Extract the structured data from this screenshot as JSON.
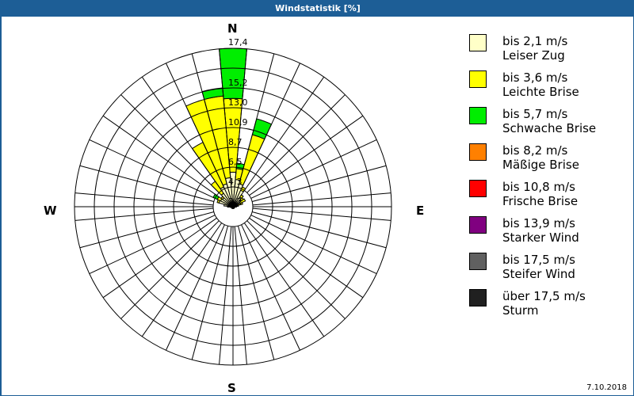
{
  "window": {
    "title": "Windstatistik [%]",
    "date": "7.10.2018"
  },
  "compass": {
    "n": "N",
    "e": "E",
    "s": "S",
    "w": "W"
  },
  "legend": [
    {
      "range": "bis 2,1 m/s",
      "name": "Leiser Zug",
      "color": "#ffffc8"
    },
    {
      "range": "bis 3,6 m/s",
      "name": "Leichte Brise",
      "color": "#ffff00"
    },
    {
      "range": "bis 5,7 m/s",
      "name": "Schwache Brise",
      "color": "#00ee00"
    },
    {
      "range": "bis 8,2 m/s",
      "name": "Mäßige Brise",
      "color": "#ff8000"
    },
    {
      "range": "bis 10,8 m/s",
      "name": "Frische Brise",
      "color": "#ff0000"
    },
    {
      "range": "bis 13,9 m/s",
      "name": "Starker Wind",
      "color": "#800080"
    },
    {
      "range": "bis 17,5 m/s",
      "name": "Steifer Wind",
      "color": "#606060"
    },
    {
      "range": "über 17,5 m/s",
      "name": "Sturm",
      "color": "#202020"
    }
  ],
  "chart_data": {
    "type": "polar-stacked-bar",
    "title": "Windstatistik [%]",
    "ring_labels": [
      "2,2",
      "4,3",
      "6,5",
      "8,7",
      "10,9",
      "13,0",
      "15,2",
      "17,4"
    ],
    "rmax": 17.4,
    "sector_width_deg": 10,
    "series_names": [
      "bis 2,1 m/s",
      "bis 3,6 m/s",
      "bis 5,7 m/s"
    ],
    "sectors": [
      {
        "dir": 0,
        "cum": [
          3.8,
          11.9,
          17.4
        ]
      },
      {
        "dir": 10,
        "cum": [
          3.0,
          4.2,
          4.8
        ]
      },
      {
        "dir": 20,
        "cum": [
          2.6,
          8.2,
          10.0
        ]
      },
      {
        "dir": 30,
        "cum": [
          2.0,
          2.4,
          2.4
        ]
      },
      {
        "dir": 40,
        "cum": [
          1.3,
          1.6,
          1.6
        ]
      },
      {
        "dir": 50,
        "cum": [
          1.0,
          1.4,
          1.4
        ]
      },
      {
        "dir": 60,
        "cum": [
          0.9,
          1.5,
          1.5
        ]
      },
      {
        "dir": 70,
        "cum": [
          0.6,
          1.1,
          1.1
        ]
      },
      {
        "dir": 80,
        "cum": [
          0.4,
          0.6,
          0.6
        ]
      },
      {
        "dir": 90,
        "cum": [
          0.3,
          0.4,
          0.4
        ]
      },
      {
        "dir": 100,
        "cum": [
          0.2,
          0.2,
          0.2
        ]
      },
      {
        "dir": 260,
        "cum": [
          0.3,
          0.3,
          0.3
        ]
      },
      {
        "dir": 270,
        "cum": [
          0.5,
          0.6,
          0.6
        ]
      },
      {
        "dir": 280,
        "cum": [
          1.0,
          1.0,
          1.0
        ]
      },
      {
        "dir": 290,
        "cum": [
          1.6,
          1.8,
          1.8
        ]
      },
      {
        "dir": 300,
        "cum": [
          1.5,
          1.9,
          2.4
        ]
      },
      {
        "dir": 310,
        "cum": [
          1.4,
          1.6,
          1.6
        ]
      },
      {
        "dir": 320,
        "cum": [
          1.8,
          3.4,
          3.4
        ]
      },
      {
        "dir": 330,
        "cum": [
          2.4,
          7.8,
          7.8
        ]
      },
      {
        "dir": 340,
        "cum": [
          2.6,
          12.2,
          12.2
        ]
      },
      {
        "dir": 350,
        "cum": [
          3.2,
          12.2,
          13.1
        ]
      }
    ]
  }
}
